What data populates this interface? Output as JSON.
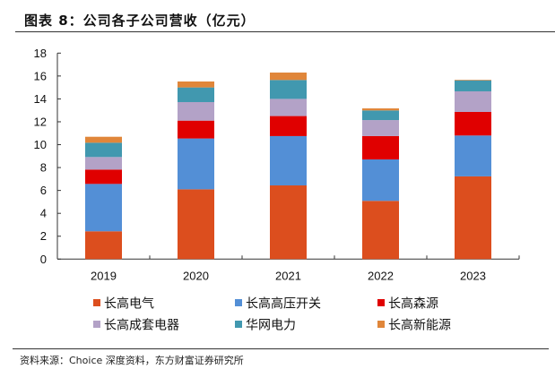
{
  "title": "图表 8：公司各子公司营收（亿元）",
  "source": "资料来源：Choice 深度资料，东方财富证券研究所",
  "chart_data": {
    "type": "bar",
    "stacked": true,
    "title": "公司各子公司营收（亿元）",
    "xlabel": "",
    "ylabel": "",
    "ylim": [
      0,
      18
    ],
    "yticks": [
      0,
      2,
      4,
      6,
      8,
      10,
      12,
      14,
      16,
      18
    ],
    "grid": false,
    "legend_position": "bottom",
    "categories": [
      "2019",
      "2020",
      "2021",
      "2022",
      "2023"
    ],
    "series": [
      {
        "name": "长高电气",
        "color": "#DC4E1E",
        "values": [
          2.43,
          6.1,
          6.44,
          5.09,
          7.23
        ]
      },
      {
        "name": "长高高压开关",
        "color": "#538FD6",
        "values": [
          4.14,
          4.44,
          4.31,
          3.62,
          3.57
        ]
      },
      {
        "name": "长高森源",
        "color": "#E00000",
        "values": [
          1.25,
          1.56,
          1.75,
          2.04,
          2.06
        ]
      },
      {
        "name": "长高成套电器",
        "color": "#B3A2C7",
        "values": [
          1.1,
          1.62,
          1.5,
          1.4,
          1.8
        ]
      },
      {
        "name": "华网电力",
        "color": "#4198AF",
        "values": [
          1.25,
          1.28,
          1.65,
          0.84,
          0.96
        ]
      },
      {
        "name": "长高新能源",
        "color": "#E0863A",
        "values": [
          0.52,
          0.52,
          0.65,
          0.18,
          0.05
        ]
      }
    ]
  }
}
